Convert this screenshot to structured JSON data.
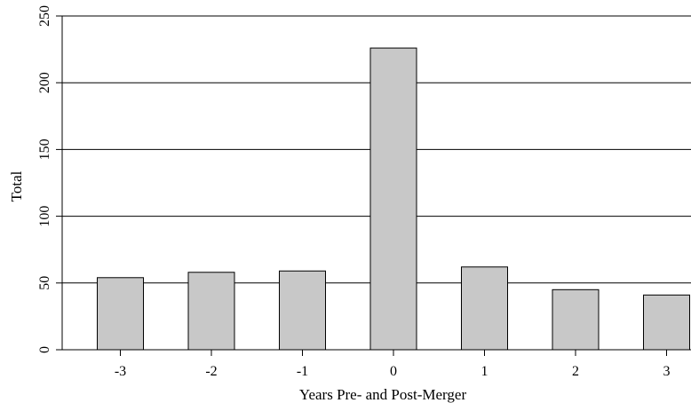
{
  "chart_data": {
    "type": "bar",
    "categories": [
      "-3",
      "-2",
      "-1",
      "0",
      "1",
      "2",
      "3"
    ],
    "values": [
      54,
      58,
      59,
      226,
      62,
      45,
      41
    ],
    "title": "",
    "xlabel": "Years Pre- and Post-Merger",
    "ylabel": "Total",
    "ylim": [
      0,
      250
    ],
    "yticks": [
      0,
      50,
      100,
      150,
      200,
      250
    ],
    "grid": true,
    "bar_color": "#c8c8c8",
    "bar_edge_color": "#000000"
  }
}
